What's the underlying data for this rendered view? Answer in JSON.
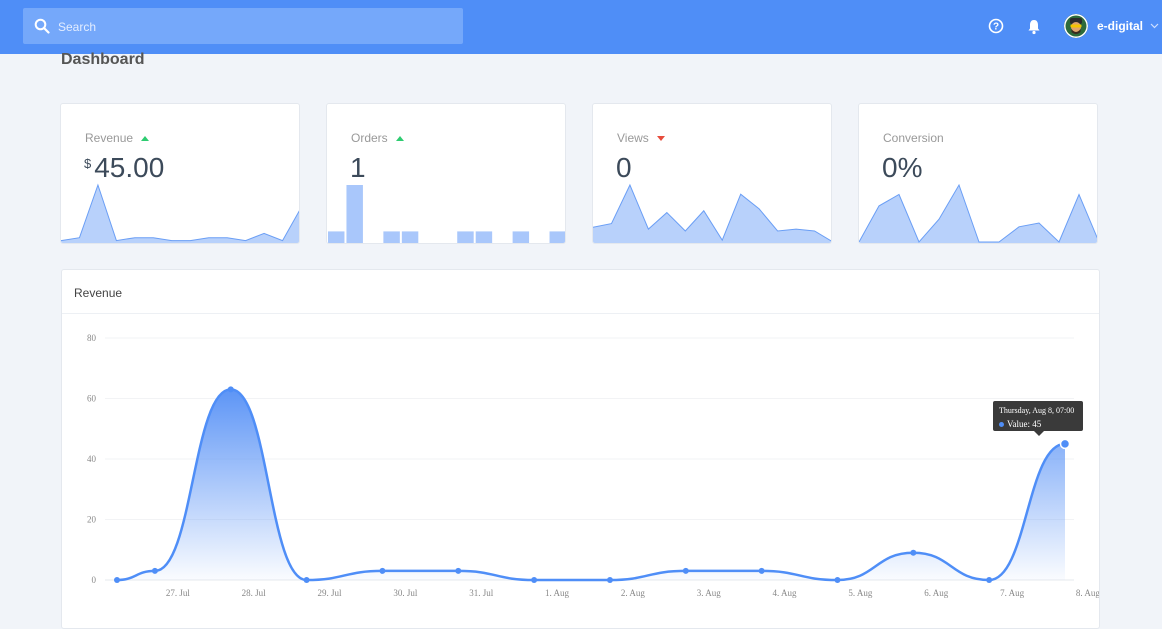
{
  "topbar": {
    "search_placeholder": "Search",
    "user_name": "e-digital"
  },
  "page": {
    "title": "Dashboard"
  },
  "cards": [
    {
      "label": "Revenue",
      "currency": "$",
      "value": "45.00",
      "trend": "up",
      "spark": {
        "type": "area",
        "values": [
          1,
          3,
          40,
          1,
          3,
          3,
          1,
          1,
          3,
          3,
          1,
          6,
          1,
          24
        ]
      }
    },
    {
      "label": "Orders",
      "currency": "",
      "value": "1",
      "trend": "up",
      "spark": {
        "type": "bar",
        "values": [
          1,
          5,
          0,
          1,
          1,
          0,
          0,
          1,
          1,
          0,
          1,
          0,
          1
        ]
      }
    },
    {
      "label": "Views",
      "currency": "",
      "value": "0",
      "trend": "down",
      "spark": {
        "type": "area",
        "values": [
          8,
          10,
          31,
          7,
          16,
          6,
          17,
          1,
          26,
          18,
          6,
          7,
          6,
          0
        ]
      }
    },
    {
      "label": "Conversion",
      "currency": "",
      "value": "0%",
      "trend": "",
      "spark": {
        "type": "area",
        "values": [
          0,
          19,
          25,
          0,
          12,
          30,
          0,
          0,
          8,
          10,
          0,
          25,
          0
        ]
      }
    }
  ],
  "revenue_panel": {
    "title": "Revenue"
  },
  "tooltip": {
    "title": "Thursday, Aug 8, 07:00",
    "value_label": "Value: 45"
  },
  "colors": {
    "accent": "#4f8ef7",
    "up": "#2ecc71",
    "down": "#e74c3c"
  },
  "chart_data": {
    "type": "area",
    "x_ticks": [
      "27. Jul",
      "28. Jul",
      "29. Jul",
      "30. Jul",
      "31. Jul",
      "1. Aug",
      "2. Aug",
      "3. Aug",
      "4. Aug",
      "5. Aug",
      "6. Aug",
      "7. Aug",
      "8. Aug"
    ],
    "x": [
      0,
      0.5,
      1.5,
      2.5,
      3.5,
      4.5,
      5.5,
      6.5,
      7.5,
      8.5,
      9.5,
      10.5,
      11.5,
      12.5
    ],
    "values": [
      0,
      3,
      63,
      0,
      3,
      3,
      0,
      0,
      3,
      3,
      0,
      9,
      0,
      45
    ],
    "y_ticks": [
      0,
      20,
      40,
      60,
      80
    ],
    "ylim": [
      0,
      80
    ],
    "grid": true
  }
}
